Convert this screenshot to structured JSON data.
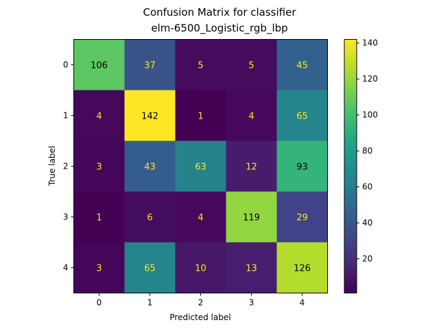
{
  "chart_data": {
    "type": "heatmap",
    "title_lines": [
      "Confusion Matrix for classifier",
      "elm-6500_Logistic_rgb_lbp"
    ],
    "xlabel": "Predicted label",
    "ylabel": "True label",
    "x_categories": [
      "0",
      "1",
      "2",
      "3",
      "4"
    ],
    "y_categories": [
      "0",
      "1",
      "2",
      "3",
      "4"
    ],
    "matrix": [
      [
        106,
        37,
        5,
        5,
        45
      ],
      [
        4,
        142,
        1,
        4,
        65
      ],
      [
        3,
        43,
        63,
        12,
        93
      ],
      [
        1,
        6,
        4,
        119,
        29
      ],
      [
        3,
        65,
        10,
        13,
        126
      ]
    ],
    "colormap": "viridis",
    "color_range": [
      1,
      142
    ],
    "colorbar_ticks": [
      "20",
      "40",
      "60",
      "80",
      "100",
      "120",
      "140"
    ],
    "colorbar_tick_values": [
      20,
      40,
      60,
      80,
      100,
      120,
      140
    ],
    "text_color_dark": "#000000",
    "text_color_light": "#fde725"
  }
}
